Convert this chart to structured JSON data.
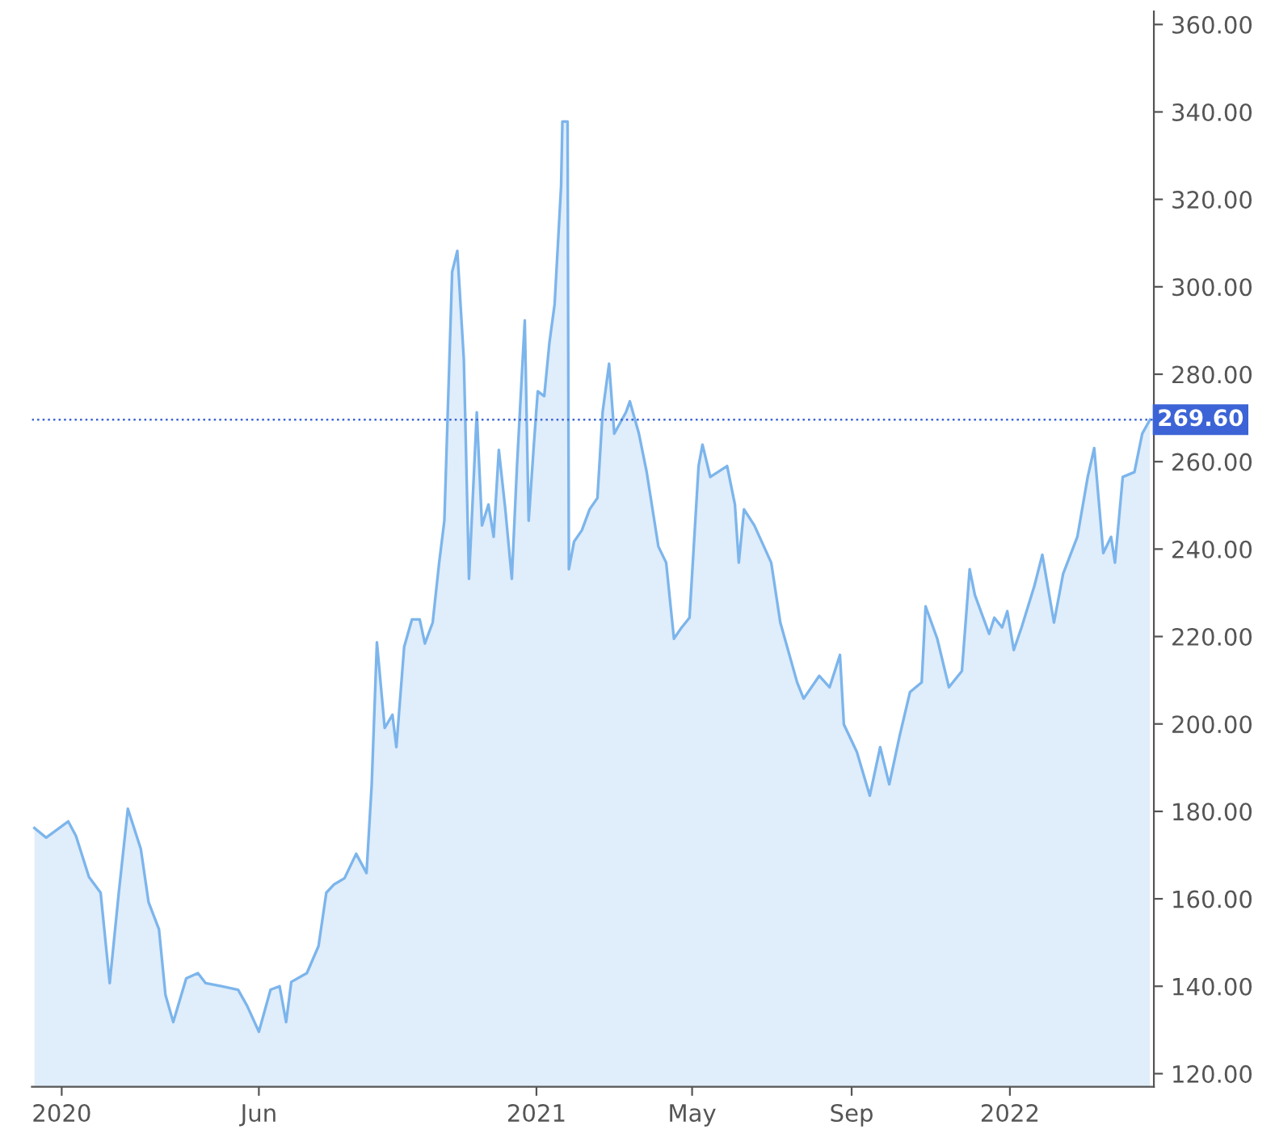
{
  "chart_data": {
    "type": "area",
    "x": [
      "2019-12-11",
      "2019-12-20",
      "2020-01-06",
      "2020-01-12",
      "2020-01-22",
      "2020-01-31",
      "2020-02-07",
      "2020-02-14",
      "2020-02-21",
      "2020-03-02",
      "2020-03-08",
      "2020-03-16",
      "2020-03-21",
      "2020-03-27",
      "2020-04-06",
      "2020-04-15",
      "2020-04-21",
      "2020-05-03",
      "2020-05-16",
      "2020-05-23",
      "2020-06-01",
      "2020-06-10",
      "2020-06-17",
      "2020-06-22",
      "2020-06-26",
      "2020-07-08",
      "2020-07-17",
      "2020-07-23",
      "2020-07-29",
      "2020-08-06",
      "2020-08-15",
      "2020-08-23",
      "2020-08-27",
      "2020-08-31",
      "2020-09-06",
      "2020-09-12",
      "2020-09-15",
      "2020-09-21",
      "2020-09-27",
      "2020-10-03",
      "2020-10-07",
      "2020-10-13",
      "2020-10-18",
      "2020-10-22",
      "2020-10-28",
      "2020-11-01",
      "2020-11-06",
      "2020-11-07",
      "2020-11-10",
      "2020-11-16",
      "2020-11-20",
      "2020-11-25",
      "2020-11-29",
      "2020-12-03",
      "2020-12-08",
      "2020-12-13",
      "2020-12-17",
      "2020-12-23",
      "2020-12-26",
      "2020-12-30",
      "2021-01-02",
      "2021-01-07",
      "2021-01-11",
      "2021-01-15",
      "2021-01-20",
      "2021-01-21",
      "2021-01-25",
      "2021-01-26",
      "2021-01-30",
      "2021-02-05",
      "2021-02-11",
      "2021-02-17",
      "2021-02-21",
      "2021-02-26",
      "2021-03-02",
      "2021-03-11",
      "2021-03-14",
      "2021-03-21",
      "2021-03-27",
      "2021-04-05",
      "2021-04-11",
      "2021-04-17",
      "2021-04-23",
      "2021-04-29",
      "2021-05-06",
      "2021-05-09",
      "2021-05-13",
      "2021-05-15",
      "2021-05-28",
      "2021-06-03",
      "2021-06-06",
      "2021-06-10",
      "2021-06-18",
      "2021-07-01",
      "2021-07-08",
      "2021-07-21",
      "2021-07-26",
      "2021-08-07",
      "2021-08-15",
      "2021-08-23",
      "2021-08-26",
      "2021-09-05",
      "2021-09-15",
      "2021-09-23",
      "2021-09-30",
      "2021-10-08",
      "2021-10-16",
      "2021-10-25",
      "2021-10-28",
      "2021-11-06",
      "2021-11-15",
      "2021-11-25",
      "2021-12-01",
      "2021-12-05",
      "2021-12-16",
      "2021-12-20",
      "2021-12-26",
      "2021-12-30",
      "2022-01-04",
      "2022-01-10",
      "2022-01-20",
      "2022-01-26",
      "2022-02-04",
      "2022-02-11",
      "2022-02-22",
      "2022-03-02",
      "2022-03-07",
      "2022-03-14",
      "2022-03-20",
      "2022-03-23",
      "2022-03-29",
      "2022-04-07",
      "2022-04-13",
      "2022-04-19"
    ],
    "series": [
      {
        "color": "#7cb5ec",
        "values": [
          176.2,
          174.0,
          177.7,
          174.4,
          165.0,
          161.4,
          140.7,
          161.4,
          180.6,
          171.4,
          159.2,
          153.0,
          138.0,
          131.8,
          141.8,
          143.0,
          140.7,
          140.0,
          139.2,
          135.5,
          129.6,
          139.2,
          140.0,
          131.8,
          141.0,
          143.0,
          149.2,
          161.4,
          163.3,
          164.7,
          170.3,
          165.9,
          186.2,
          218.7,
          199.1,
          202.1,
          194.7,
          217.6,
          223.9,
          223.9,
          218.4,
          223.2,
          236.9,
          246.5,
          303.4,
          308.2,
          283.5,
          271.3,
          233.2,
          271.3,
          245.4,
          250.2,
          242.8,
          262.7,
          249.1,
          233.2,
          259.0,
          292.3,
          246.5,
          263.9,
          276.1,
          275.0,
          287.2,
          296.0,
          323.0,
          337.8,
          337.8,
          235.4,
          241.7,
          244.3,
          249.1,
          251.7,
          271.3,
          282.4,
          266.4,
          271.3,
          273.8,
          266.4,
          257.6,
          240.6,
          236.9,
          219.5,
          222.1,
          224.3,
          259.0,
          263.9,
          259.0,
          256.5,
          259.0,
          250.2,
          236.9,
          249.1,
          245.4,
          236.9,
          223.2,
          209.5,
          205.8,
          211.0,
          208.4,
          215.8,
          199.9,
          193.6,
          183.6,
          194.7,
          186.2,
          197.3,
          207.3,
          209.5,
          226.9,
          219.5,
          208.4,
          212.1,
          235.4,
          229.5,
          220.6,
          224.3,
          222.1,
          225.8,
          216.9,
          222.1,
          231.7,
          238.7,
          223.2,
          234.3,
          242.8,
          256.5,
          263.1,
          239.1,
          242.8,
          236.9,
          256.5,
          257.6,
          266.4,
          269.6
        ]
      }
    ],
    "xlim": [
      "2019-12-09",
      "2022-04-22"
    ],
    "xticks": [
      {
        "value": "2020-01-01",
        "label": "2020"
      },
      {
        "value": "2020-06-01",
        "label": "Jun"
      },
      {
        "value": "2021-01-01",
        "label": "2021"
      },
      {
        "value": "2021-05-01",
        "label": "May"
      },
      {
        "value": "2021-09-01",
        "label": "Sep"
      },
      {
        "value": "2022-01-01",
        "label": "2022"
      }
    ],
    "ylim": [
      117,
      363
    ],
    "yticks": [
      {
        "value": 120,
        "label": "120.00"
      },
      {
        "value": 140,
        "label": "140.00"
      },
      {
        "value": 160,
        "label": "160.00"
      },
      {
        "value": 180,
        "label": "180.00"
      },
      {
        "value": 200,
        "label": "200.00"
      },
      {
        "value": 220,
        "label": "220.00"
      },
      {
        "value": 240,
        "label": "240.00"
      },
      {
        "value": 260,
        "label": "260.00"
      },
      {
        "value": 280,
        "label": "280.00"
      },
      {
        "value": 300,
        "label": "300.00"
      },
      {
        "value": 320,
        "label": "320.00"
      },
      {
        "value": 340,
        "label": "340.00"
      },
      {
        "value": 360,
        "label": "360.00"
      }
    ],
    "ref_lines": [
      {
        "axis": "y",
        "value": 269.6,
        "label": "269.60",
        "color": "#3c64d6",
        "line_style": "dotted"
      }
    ],
    "grid": false,
    "legend": false
  }
}
